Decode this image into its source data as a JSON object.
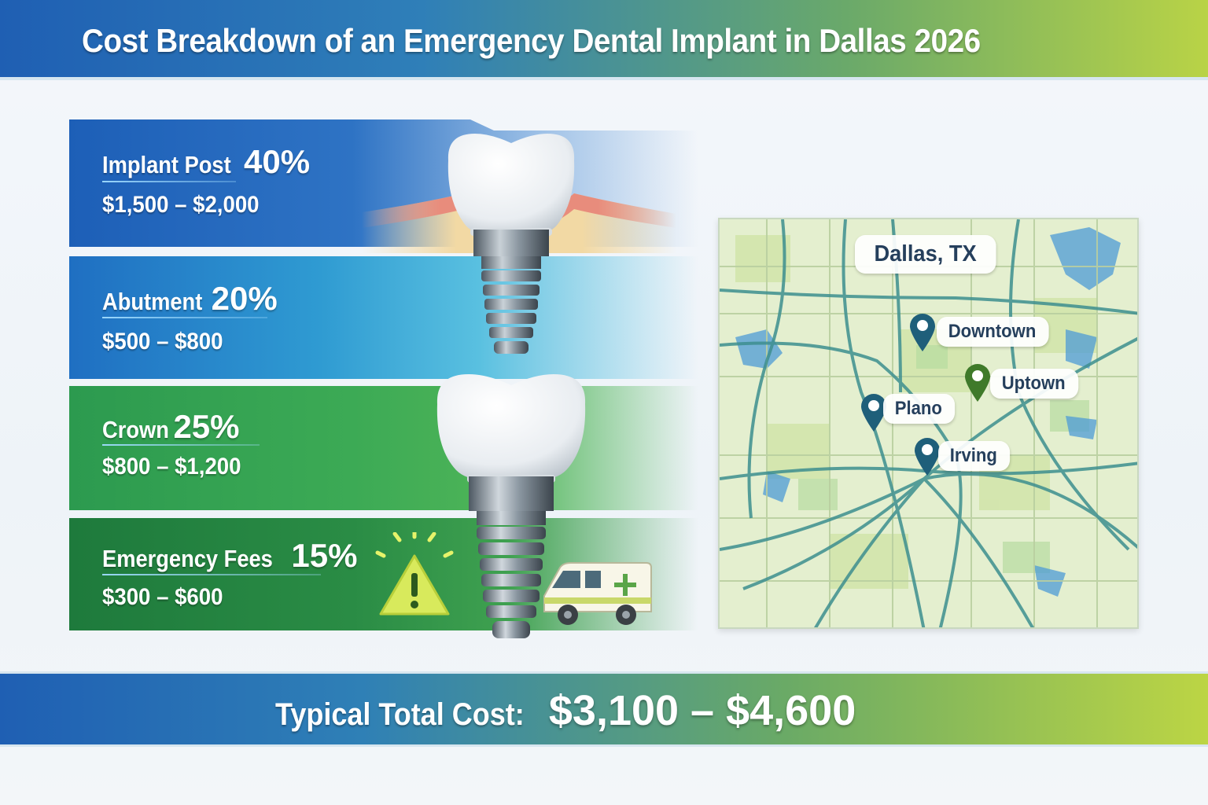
{
  "header": {
    "title": "Cost Breakdown of an Emergency Dental Implant in Dallas 2026"
  },
  "components": [
    {
      "name": "Implant Post",
      "percent": "40%",
      "price": "$1,500 – $2,000",
      "color": "#1d5fb7"
    },
    {
      "name": "Abutment",
      "percent": "20%",
      "price": "$500 – $800",
      "color": "#2f9bd2"
    },
    {
      "name": "Crown",
      "percent": "25%",
      "price": "$800 – $1,200",
      "color": "#3caa55"
    },
    {
      "name": "Emergency Fees",
      "percent": "15%",
      "price": "$300 – $600",
      "color": "#2a8c45"
    }
  ],
  "map": {
    "title": "Dallas, TX",
    "locations": [
      {
        "label": "Downtown",
        "pin_color": "#1f5f7a"
      },
      {
        "label": "Uptown",
        "pin_color": "#3f7a2a"
      },
      {
        "label": "Plano",
        "pin_color": "#1f5f7a"
      },
      {
        "label": "Irving",
        "pin_color": "#1f5f7a"
      }
    ]
  },
  "total": {
    "label": "Typical Total Cost:",
    "value": "$3,100 – $4,600"
  },
  "icons": [
    "warning-icon",
    "ambulance-icon",
    "map-pin-icon",
    "dental-implant-icon"
  ]
}
